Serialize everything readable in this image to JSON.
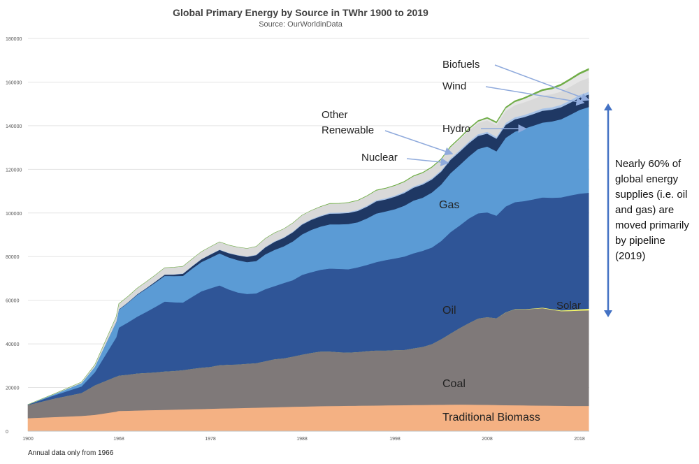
{
  "chart_data": {
    "type": "area",
    "stacked": true,
    "title": "Global Primary Energy by Source in TWhr 1900 to 2019",
    "subtitle": "Source: OurWorldinData",
    "x_ticks": [
      "1900",
      "1968",
      "1978",
      "1988",
      "1998",
      "2008",
      "2018"
    ],
    "y_ticks": [
      "0",
      "20000",
      "40000",
      "60000",
      "80000",
      "100000",
      "120000",
      "140000",
      "160000",
      "180000"
    ],
    "ylim": [
      0,
      180000
    ],
    "grid": true,
    "footnote": "Annual data only from 1966",
    "note": "Nearly 60% of global energy supplies (i.e. oil and gas) are moved primarily by pipeline (2019)",
    "x": [
      "1900",
      "1920",
      "1940",
      "1950",
      "1966",
      "1967",
      "1968",
      "1969",
      "1970",
      "1971",
      "1972",
      "1973",
      "1974",
      "1975",
      "1976",
      "1977",
      "1978",
      "1979",
      "1980",
      "1981",
      "1982",
      "1983",
      "1984",
      "1985",
      "1986",
      "1987",
      "1988",
      "1989",
      "1990",
      "1991",
      "1992",
      "1993",
      "1994",
      "1995",
      "1996",
      "1997",
      "1998",
      "1999",
      "2000",
      "2001",
      "2002",
      "2003",
      "2004",
      "2005",
      "2006",
      "2007",
      "2008",
      "2009",
      "2010",
      "2011",
      "2012",
      "2013",
      "2014",
      "2015",
      "2016",
      "2017",
      "2018",
      "2019"
    ],
    "series": [
      {
        "name": "Traditional Biomass",
        "color": "#f4b183",
        "label_color": "#222222",
        "values": [
          6000,
          6500,
          7000,
          7500,
          9000,
          9200,
          9300,
          9400,
          9500,
          9600,
          9700,
          9800,
          9900,
          10000,
          10100,
          10200,
          10300,
          10400,
          10500,
          10600,
          10700,
          10800,
          10900,
          11000,
          11100,
          11200,
          11300,
          11400,
          11500,
          11550,
          11600,
          11650,
          11700,
          11750,
          11800,
          11850,
          11900,
          11950,
          12000,
          12050,
          12100,
          12150,
          12200,
          12250,
          12200,
          12150,
          12100,
          12000,
          11950,
          11900,
          11850,
          11800,
          11750,
          11700,
          11650,
          11600,
          11600,
          11600
        ]
      },
      {
        "name": "Coal",
        "color": "#7f7979",
        "label_color": "#222222",
        "values": [
          6000,
          8500,
          10500,
          13500,
          16000,
          16000,
          16200,
          16500,
          17000,
          17100,
          17300,
          17600,
          17700,
          18000,
          18500,
          18900,
          19200,
          19900,
          20000,
          20000,
          20200,
          20400,
          21200,
          22000,
          22300,
          23000,
          23800,
          24500,
          25000,
          25000,
          24600,
          24400,
          24600,
          25000,
          25200,
          25100,
          25300,
          25300,
          26000,
          26600,
          27800,
          30000,
          32500,
          35000,
          37300,
          39500,
          40200,
          39800,
          42500,
          44000,
          44000,
          44300,
          44700,
          44000,
          43400,
          43500,
          43700,
          43800
        ]
      },
      {
        "name": "Solar",
        "color": "#ffff66",
        "label_color": "#222222",
        "values": [
          0,
          0,
          0,
          0,
          0,
          0,
          0,
          0,
          0,
          0,
          0,
          0,
          0,
          0,
          0,
          0,
          0,
          0,
          0,
          0,
          0,
          0,
          0,
          0,
          0,
          0,
          0,
          0,
          0,
          0,
          0,
          0,
          0,
          0,
          0,
          0,
          0,
          0,
          0,
          0,
          0,
          0,
          0,
          0,
          0,
          0,
          0,
          0,
          50,
          80,
          120,
          170,
          220,
          280,
          330,
          450,
          580,
          720
        ]
      },
      {
        "name": "Oil",
        "color": "#2f5597",
        "label_color": "#222222",
        "values": [
          200,
          1500,
          3000,
          6000,
          18000,
          20000,
          22000,
          24000,
          26000,
          28000,
          30000,
          32000,
          31500,
          31000,
          33000,
          35000,
          36000,
          36500,
          34500,
          33000,
          32000,
          32000,
          33000,
          33500,
          34500,
          35000,
          36500,
          37000,
          37500,
          38000,
          38200,
          38200,
          38800,
          39500,
          40500,
          41500,
          42000,
          42800,
          43500,
          44000,
          44300,
          45000,
          46500,
          47000,
          48000,
          48200,
          48000,
          47000,
          48500,
          49000,
          49500,
          50000,
          50500,
          51000,
          51800,
          52500,
          53000,
          53200
        ]
      },
      {
        "name": "Gas",
        "color": "#5b9bd5",
        "label_color": "#222222",
        "values": [
          0,
          500,
          1500,
          2500,
          7000,
          7600,
          8200,
          9000,
          10000,
          10600,
          11200,
          11800,
          12000,
          12200,
          12900,
          13400,
          14000,
          14700,
          14700,
          14800,
          14600,
          14800,
          16000,
          16600,
          16800,
          17800,
          18600,
          19400,
          19800,
          20300,
          20400,
          20700,
          20700,
          21300,
          22300,
          22300,
          22600,
          23300,
          24200,
          24400,
          25200,
          25900,
          27000,
          27700,
          28400,
          29500,
          30200,
          29500,
          31500,
          32300,
          33200,
          33800,
          34300,
          35000,
          35800,
          37000,
          38400,
          39300
        ]
      },
      {
        "name": "Nuclear",
        "color": "#1f3864",
        "label_color": "#222222",
        "values": [
          0,
          0,
          0,
          0,
          100,
          120,
          150,
          200,
          250,
          300,
          400,
          550,
          700,
          1000,
          1100,
          1300,
          1500,
          1600,
          1900,
          2200,
          2400,
          2700,
          3200,
          3700,
          3900,
          4200,
          4500,
          4600,
          4700,
          4900,
          5000,
          5100,
          5200,
          5400,
          5600,
          5500,
          5700,
          5800,
          5900,
          6000,
          6000,
          5900,
          6100,
          6100,
          6100,
          6000,
          5900,
          5800,
          5900,
          5700,
          5300,
          5300,
          5400,
          5400,
          5500,
          5500,
          5600,
          5700
        ]
      },
      {
        "name": "Other Renewable",
        "color": "#a9c4e8",
        "label_color": "#222222",
        "values": [
          0,
          0,
          0,
          0,
          50,
          60,
          70,
          80,
          90,
          100,
          110,
          120,
          130,
          140,
          150,
          160,
          170,
          180,
          200,
          220,
          240,
          260,
          280,
          300,
          320,
          340,
          360,
          380,
          400,
          420,
          440,
          460,
          480,
          500,
          520,
          540,
          560,
          580,
          600,
          620,
          650,
          680,
          710,
          740,
          770,
          800,
          830,
          860,
          900,
          940,
          980,
          1020,
          1060,
          1100,
          1140,
          1180,
          1220,
          1260
        ]
      },
      {
        "name": "Hydro",
        "color": "#d9d9d9",
        "label_color": "#222222",
        "values": [
          0,
          200,
          500,
          900,
          2300,
          2400,
          2500,
          2600,
          2700,
          2800,
          2900,
          3000,
          3200,
          3200,
          3200,
          3300,
          3400,
          3500,
          3500,
          3500,
          3600,
          3700,
          3800,
          3800,
          3800,
          3900,
          3900,
          3900,
          4000,
          4100,
          4100,
          4200,
          4200,
          4300,
          4400,
          4400,
          4400,
          4400,
          4500,
          4500,
          4600,
          4600,
          4800,
          4900,
          5000,
          5100,
          5300,
          5300,
          5500,
          5600,
          5800,
          5900,
          6000,
          6000,
          6100,
          6200,
          6300,
          6400
        ]
      },
      {
        "name": "Wind",
        "color": "#e6e6e6",
        "label_color": "#222222",
        "values": [
          0,
          0,
          0,
          0,
          0,
          0,
          0,
          0,
          0,
          0,
          0,
          0,
          0,
          0,
          0,
          0,
          0,
          0,
          0,
          0,
          0,
          0,
          0,
          0,
          0,
          0,
          0,
          0,
          10,
          15,
          20,
          30,
          40,
          50,
          60,
          70,
          90,
          110,
          140,
          180,
          220,
          270,
          330,
          420,
          530,
          660,
          820,
          1000,
          1200,
          1400,
          1600,
          1900,
          2100,
          2300,
          2700,
          3000,
          3200,
          3500
        ]
      },
      {
        "name": "Biofuels",
        "color": "#70ad47",
        "label_color": "#222222",
        "values": [
          0,
          0,
          0,
          0,
          0,
          0,
          0,
          0,
          0,
          0,
          0,
          0,
          0,
          0,
          0,
          0,
          0,
          0,
          0,
          0,
          0,
          0,
          0,
          0,
          0,
          0,
          0,
          0,
          70,
          80,
          90,
          100,
          120,
          140,
          160,
          180,
          200,
          220,
          240,
          260,
          280,
          300,
          330,
          360,
          400,
          450,
          500,
          520,
          560,
          580,
          600,
          620,
          640,
          660,
          680,
          700,
          720,
          740
        ]
      }
    ]
  }
}
